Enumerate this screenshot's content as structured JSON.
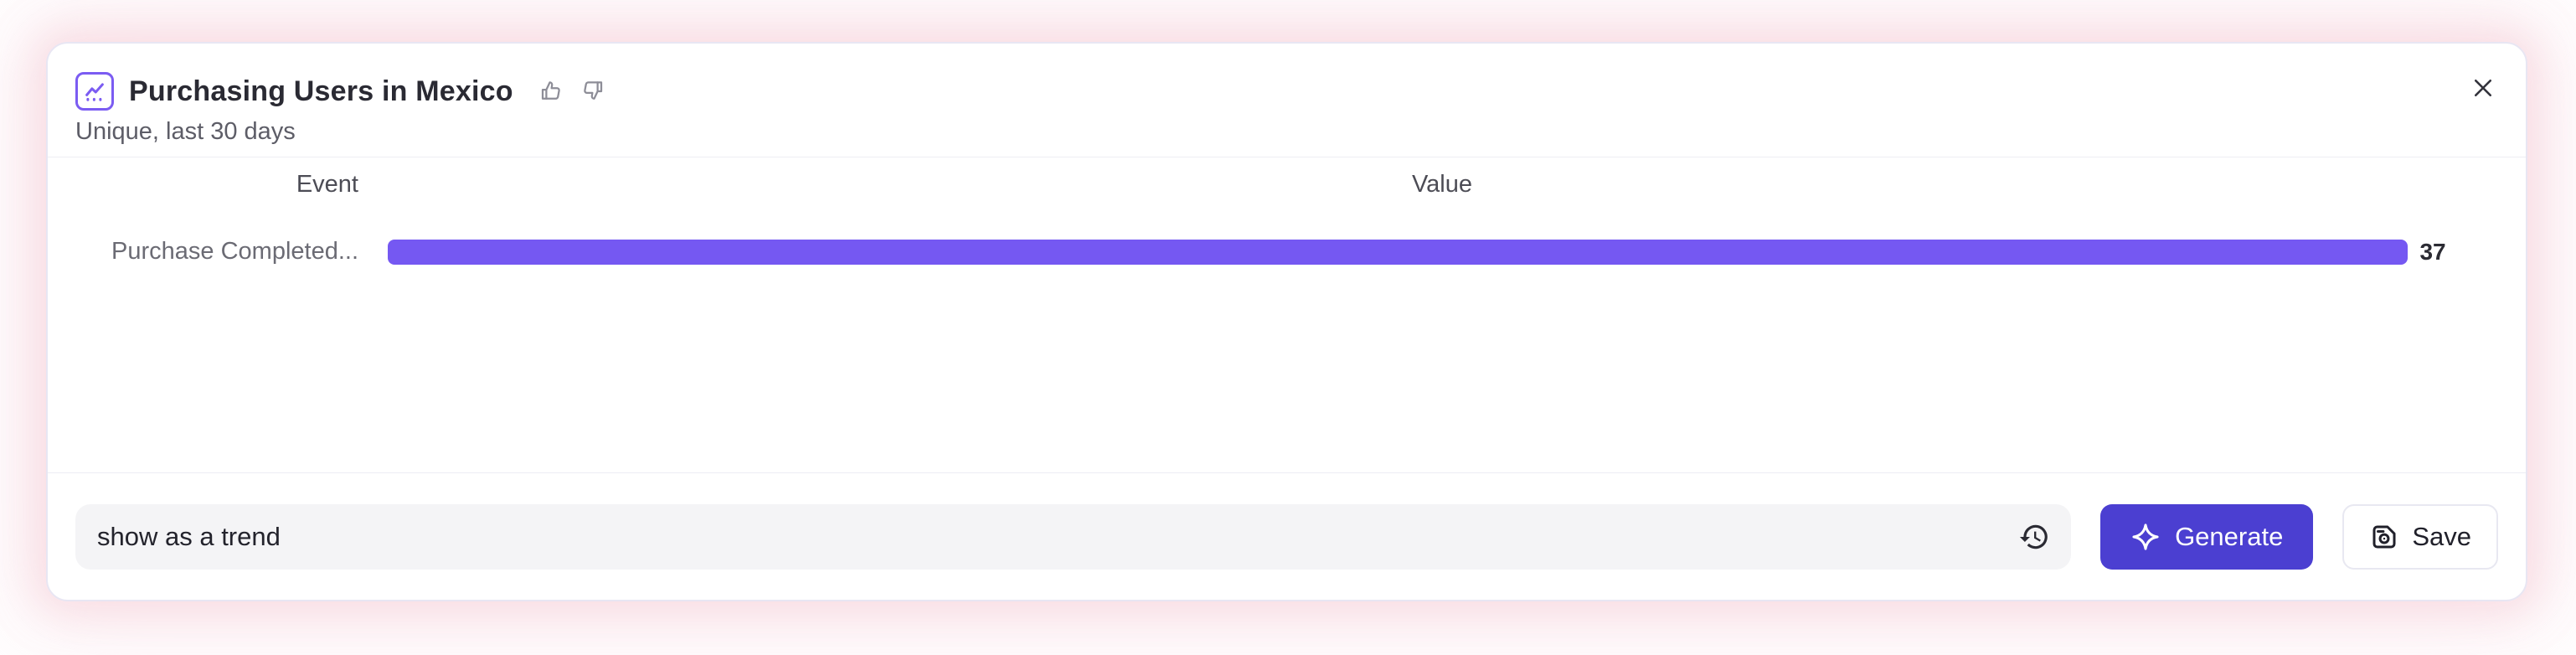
{
  "header": {
    "icon": "insights-chart-icon",
    "title": "Purchasing Users in Mexico",
    "subtitle": "Unique, last 30 days",
    "feedback": {
      "thumbs_up_icon": "thumbs-up-icon",
      "thumbs_down_icon": "thumbs-down-icon"
    },
    "close_icon": "close-icon"
  },
  "table": {
    "event_header": "Event",
    "value_header": "Value"
  },
  "chart_data": {
    "type": "bar",
    "orientation": "horizontal",
    "title": "Purchasing Users in Mexico",
    "subtitle": "Unique, last 30 days",
    "categories": [
      "Purchase Completed..."
    ],
    "values": [
      37
    ],
    "max_value": 37,
    "bar_color": "#7558F2",
    "grid": false,
    "legend": false,
    "bar_track_fraction": 0.96
  },
  "footer": {
    "prompt": {
      "value": "show as a trend"
    },
    "history_icon": "history-icon",
    "generate": {
      "label": "Generate",
      "icon": "sparkle-icon",
      "color": "#4B3FD1"
    },
    "save": {
      "label": "Save",
      "icon": "save-icon"
    }
  },
  "colors": {
    "bar": "#7558F2",
    "generate_button": "#4B3FD1",
    "accent_icon": "#7B5CF2",
    "glow": "#F8D8E0"
  }
}
